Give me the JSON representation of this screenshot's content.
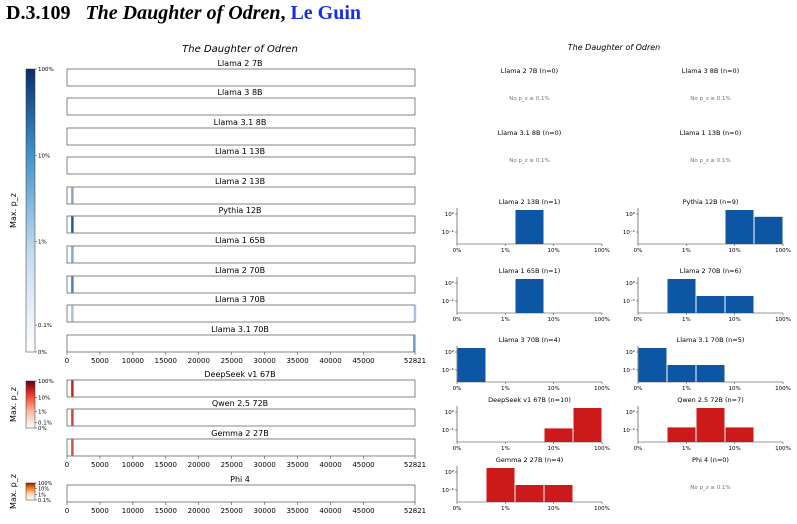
{
  "heading": {
    "section": "D.3.109",
    "title": "The Daughter of Odren",
    "separator": ",",
    "author": "Le Guin"
  },
  "left_panel": {
    "title": "The Daughter of Odren",
    "x_ticks": [
      "0",
      "5000",
      "10000",
      "15000",
      "20000",
      "25000",
      "30000",
      "35000",
      "40000",
      "45000",
      "52821"
    ],
    "x_max": 52821
  },
  "right_panel": {
    "title": "The Daughter of Odren",
    "x_ticks": [
      "0%",
      "1%",
      "10%",
      "100%"
    ]
  },
  "colorbars": [
    {
      "id": "blue",
      "label": "Max. p_z",
      "ticks": [
        "100%",
        "10%",
        "1%",
        "0.1%",
        "0%"
      ]
    },
    {
      "id": "red",
      "label": "Max. p_z",
      "ticks": [
        "100%",
        "10%",
        "1%",
        "0.1%",
        "0%"
      ]
    },
    {
      "id": "orange",
      "label": "Max. p_z",
      "ticks": [
        "100%",
        "10%",
        "1%",
        "0.1%"
      ]
    }
  ],
  "colors": {
    "blue": "#0d56a3",
    "red": "#cc1a1a",
    "orange": "#d9550f"
  },
  "chart_data": [
    {
      "type": "heatmap",
      "title": "The Daughter of Odren",
      "xlim": [
        0,
        52821
      ],
      "rows": [
        {
          "name": "Llama 2 7B",
          "family": "blue",
          "marks": []
        },
        {
          "name": "Llama 3 8B",
          "family": "blue",
          "marks": []
        },
        {
          "name": "Llama 3.1 8B",
          "family": "blue",
          "marks": []
        },
        {
          "name": "Llama 1 13B",
          "family": "blue",
          "marks": []
        },
        {
          "name": "Llama 2 13B",
          "family": "blue",
          "marks": [
            {
              "x": 400,
              "level": 0.35
            }
          ]
        },
        {
          "name": "Pythia 12B",
          "family": "blue",
          "marks": [
            {
              "x": 400,
              "level": 0.95
            }
          ]
        },
        {
          "name": "Llama 1 65B",
          "family": "blue",
          "marks": [
            {
              "x": 400,
              "level": 0.35
            }
          ]
        },
        {
          "name": "Llama 2 70B",
          "family": "blue",
          "marks": [
            {
              "x": 400,
              "level": 0.65
            }
          ]
        },
        {
          "name": "Llama 3 70B",
          "family": "blue",
          "marks": [
            {
              "x": 400,
              "level": 0.15
            },
            {
              "x": 52400,
              "level": 0.15
            }
          ]
        },
        {
          "name": "Llama 3.1 70B",
          "family": "blue",
          "marks": [
            {
              "x": 52300,
              "level": 0.45
            }
          ]
        },
        {
          "name": "DeepSeek v1 67B",
          "family": "red",
          "marks": [
            {
              "x": 400,
              "level": 0.95
            }
          ]
        },
        {
          "name": "Qwen 2.5 72B",
          "family": "red",
          "marks": [
            {
              "x": 400,
              "level": 0.75
            }
          ]
        },
        {
          "name": "Gemma 2 27B",
          "family": "red",
          "marks": [
            {
              "x": 400,
              "level": 0.7
            }
          ]
        },
        {
          "name": "Phi 4",
          "family": "orange",
          "marks": []
        }
      ]
    },
    {
      "type": "bar",
      "title": "The Daughter of Odren",
      "x_scale": "log",
      "x_ticks": [
        "0%",
        "1%",
        "10%",
        "100%"
      ],
      "empty_text": "No p_z ≥ 0.1%",
      "panels": [
        {
          "title": "Llama 2 7B (n=0)",
          "family": "blue",
          "bars": []
        },
        {
          "title": "Llama 3 8B (n=0)",
          "family": "blue",
          "bars": []
        },
        {
          "title": "Llama 3.1 8B (n=0)",
          "family": "blue",
          "bars": []
        },
        {
          "title": "Llama 1 13B (n=0)",
          "family": "blue",
          "bars": []
        },
        {
          "title": "Llama 2 13B (n=1)",
          "family": "blue",
          "bars": [
            0,
            0,
            1,
            0,
            0
          ]
        },
        {
          "title": "Pythia 12B (n=9)",
          "family": "blue",
          "bars": [
            0,
            0,
            0,
            1,
            0.8
          ]
        },
        {
          "title": "Llama 1 65B (n=1)",
          "family": "blue",
          "bars": [
            0,
            0,
            1,
            0,
            0
          ]
        },
        {
          "title": "Llama 2 70B (n=6)",
          "family": "blue",
          "bars": [
            0,
            1,
            0.5,
            0.5,
            0
          ]
        },
        {
          "title": "Llama 3 70B (n=4)",
          "family": "blue",
          "bars": [
            1,
            0,
            0,
            0,
            0
          ]
        },
        {
          "title": "Llama 3.1 70B (n=5)",
          "family": "blue",
          "bars": [
            1,
            0.5,
            0.5,
            0,
            0
          ]
        },
        {
          "title": "DeepSeek v1 67B (n=10)",
          "family": "red",
          "bars": [
            0,
            0,
            0,
            0.4,
            1
          ]
        },
        {
          "title": "Qwen 2.5 72B (n=7)",
          "family": "red",
          "bars": [
            0,
            0.43,
            1,
            0.43,
            0
          ]
        },
        {
          "title": "Gemma 2 27B (n=4)",
          "family": "red",
          "bars": [
            0,
            1,
            0.5,
            0.5,
            0
          ]
        },
        {
          "title": "Phi 4 (n=0)",
          "family": "orange",
          "bars": []
        }
      ]
    }
  ]
}
